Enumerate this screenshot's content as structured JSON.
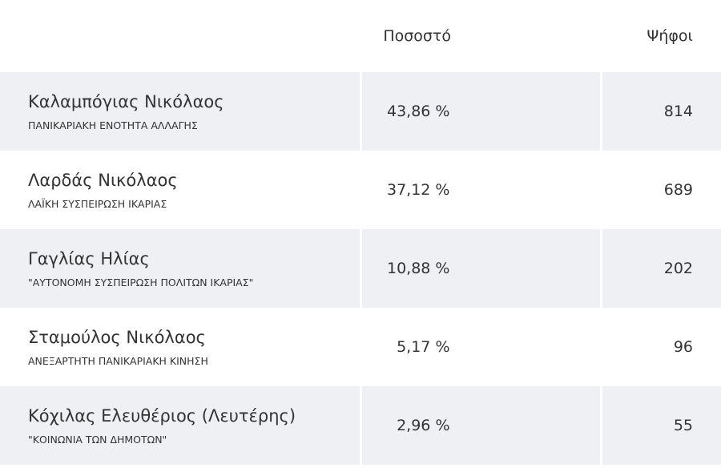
{
  "table": {
    "header": [
      "Ποσοστό",
      "Ψήφοι"
    ],
    "rows": [
      {
        "name": "Καλαμπόγιας Νικόλαος",
        "party": "ΠΑΝΙΚΑΡΙΑΚΗ ΕΝΟΤΗΤΑ ΑΛΛΑΓΗΣ",
        "percent": "43,86 %",
        "votes": 814
      },
      {
        "name": "Λαρδάς Νικόλαος",
        "party": "ΛΑΪΚΗ ΣΥΣΠΕΙΡΩΣΗ ΙΚΑΡΙΑΣ",
        "percent": "37,12 %",
        "votes": 689
      },
      {
        "name": "Γαγλίας Ηλίας",
        "party": "\"ΑΥΤΟΝΟΜΗ ΣΥΣΠΕΙΡΩΣΗ ΠΟΛΙΤΩΝ ΙΚΑΡΙΑΣ\"",
        "percent": "10,88 %",
        "votes": 202
      },
      {
        "name": "Σταμούλος Νικόλαος",
        "party": "ΑΝΕΞΑΡΤΗΤΗ ΠΑΝΙΚΑΡΙΑΚΗ ΚΙΝΗΣΗ",
        "percent": "5,17 %",
        "votes": 96
      },
      {
        "name": "Κόχιλας Ελευθέριος (Λευτέρης)",
        "party": "\"ΚΟΙΝΩΝΙΑ ΤΩΝ ΔΗΜΟΤΩΝ\"",
        "percent": "2,96 %",
        "votes": 55
      }
    ]
  }
}
